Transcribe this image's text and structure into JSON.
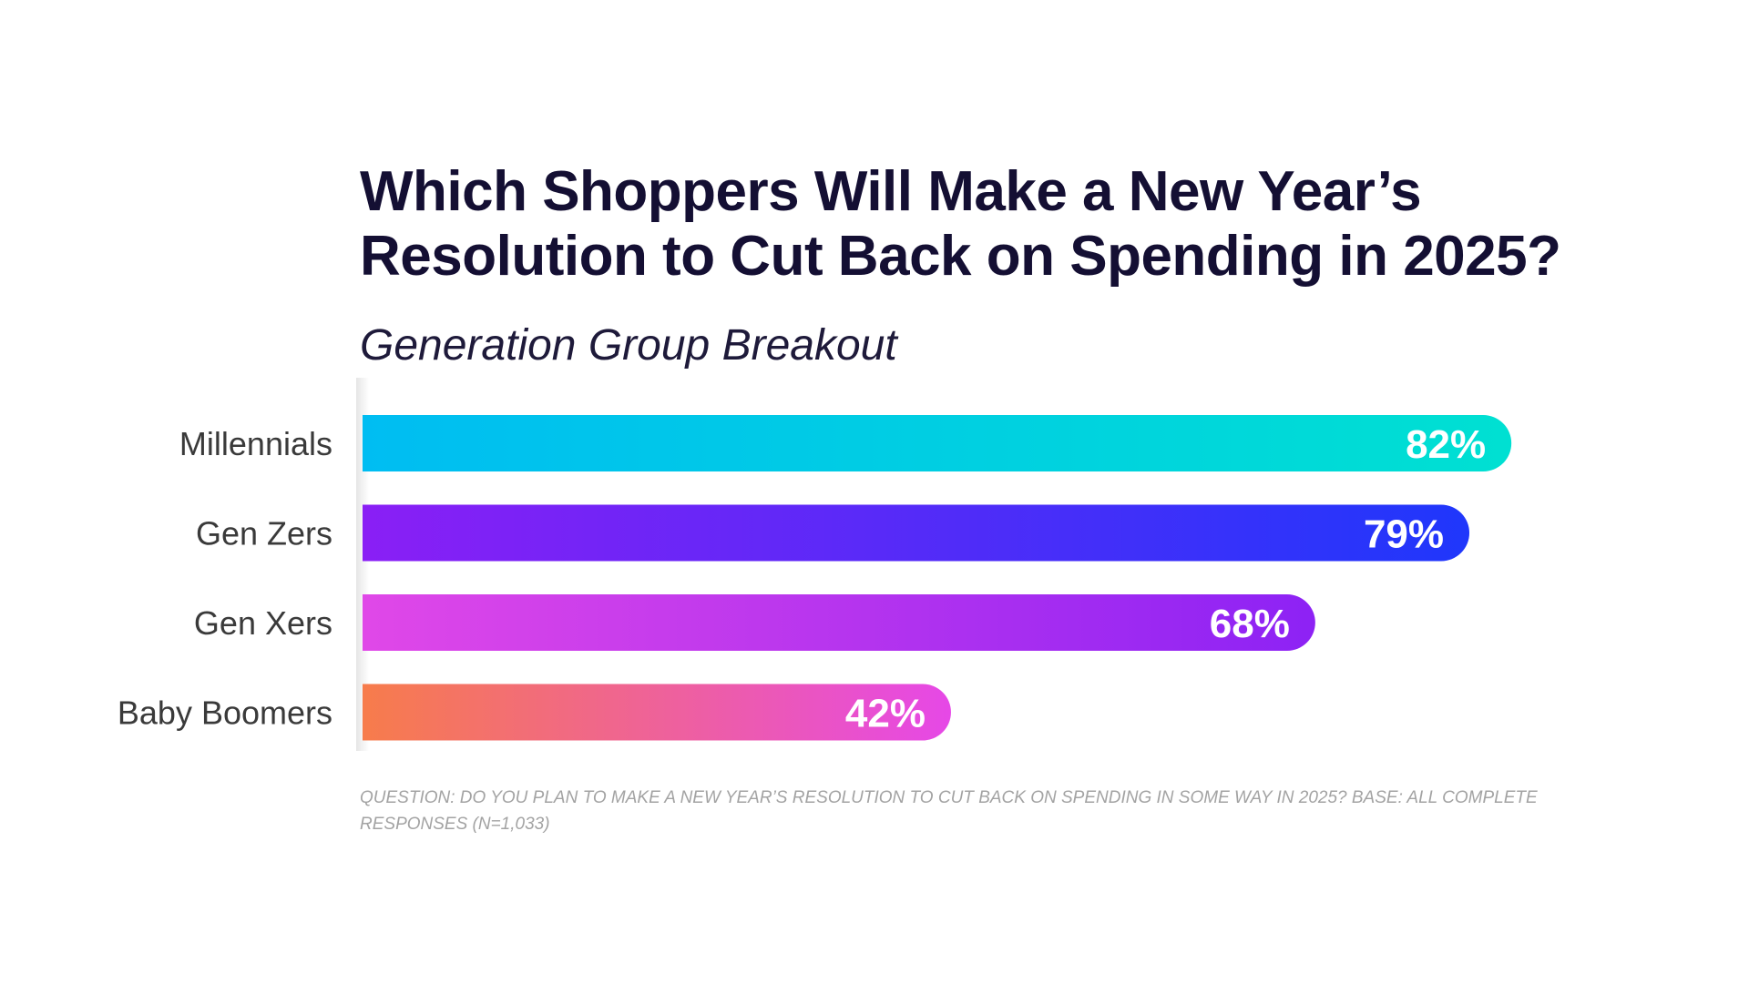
{
  "chart_data": {
    "type": "bar",
    "orientation": "horizontal",
    "title_lines": [
      "Which Shoppers Will Make a New Year’s",
      "Resolution to Cut Back on Spending in 2025?"
    ],
    "subtitle": "Generation Group Breakout",
    "categories": [
      "Millennials",
      "Gen Zers",
      "Gen Xers",
      "Baby Boomers"
    ],
    "values": [
      82,
      79,
      68,
      42
    ],
    "value_labels": [
      "82%",
      "79%",
      "68%",
      "42%"
    ],
    "unit": "%",
    "xlim": [
      0,
      100
    ],
    "grid": false,
    "legend": "none",
    "bar_gradients": [
      [
        "#00bdf2",
        "#00e0d2"
      ],
      [
        "#8a1ff5",
        "#1f37fb"
      ],
      [
        "#e048e8",
        "#8d22f4"
      ],
      [
        "#f77c4b",
        "#e648e7"
      ]
    ],
    "footnote": "QUESTION: DO YOU PLAN TO MAKE A NEW YEAR’S RESOLUTION TO CUT BACK ON SPENDING IN SOME WAY IN 2025? BASE: ALL COMPLETE RESPONSES (N=1,033)"
  },
  "colors": {
    "title": "#140f33",
    "category_label": "#3a3a3a",
    "value_label": "#ffffff",
    "footnote": "#a3a3a3"
  }
}
